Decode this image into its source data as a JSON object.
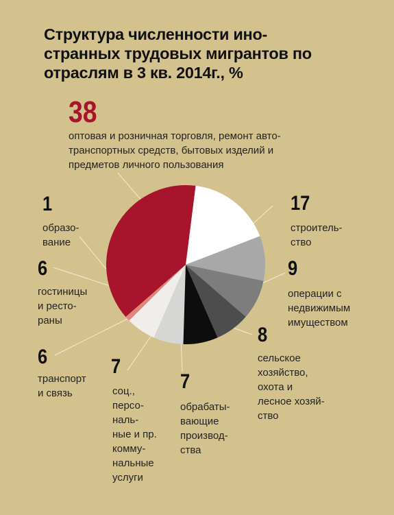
{
  "title_lines": [
    "Структура численности ино-",
    "странных трудовых мигрантов по",
    "отраслям в 3 кв. 2014г., %"
  ],
  "colors": {
    "background": "#d4c28e",
    "accent": "#a7142c",
    "leader_line": "#f2ecd4"
  },
  "chart_data": {
    "type": "pie",
    "title": "Структура численности иностранных трудовых мигрантов по отраслям в 3 кв. 2014г., %",
    "start_angle_deg": -21,
    "direction": "counterclockwise",
    "slices": [
      {
        "value": 17,
        "label_lines": [
          "строитель-",
          "ство"
        ],
        "color": "#ffffff"
      },
      {
        "value": 38,
        "label_lines": [
          "оптовая и розничная торговля, ремонт авто-",
          "транспортных средств, бытовых изделий и",
          "предметов личного пользования"
        ],
        "color": "#a7142c"
      },
      {
        "value": 1,
        "label_lines": [
          "образо-",
          "вание"
        ],
        "color": "#e0877a"
      },
      {
        "value": 6,
        "label_lines": [
          "гостиницы",
          "и ресто-",
          "раны"
        ],
        "color": "#efeeea"
      },
      {
        "value": 6,
        "label_lines": [
          "транспорт",
          "и связь"
        ],
        "color": "#d6d6d4"
      },
      {
        "value": 7,
        "label_lines": [
          "соц.,",
          "персо-",
          "наль-",
          "ные и пр.",
          "комму-",
          "нальные",
          "услуги"
        ],
        "color": "#0d0d0d"
      },
      {
        "value": 7,
        "label_lines": [
          "обрабаты-",
          "вающие",
          "производ-",
          "ства"
        ],
        "color": "#4d4d4d"
      },
      {
        "value": 8,
        "label_lines": [
          "сельское",
          "хозяйство,",
          "охота и",
          "лесное хозяй-",
          "ство"
        ],
        "color": "#7d7d7d"
      },
      {
        "value": 9,
        "label_lines": [
          "операции с",
          "недвижимым",
          "имуществом"
        ],
        "color": "#a8a8a8"
      }
    ]
  }
}
